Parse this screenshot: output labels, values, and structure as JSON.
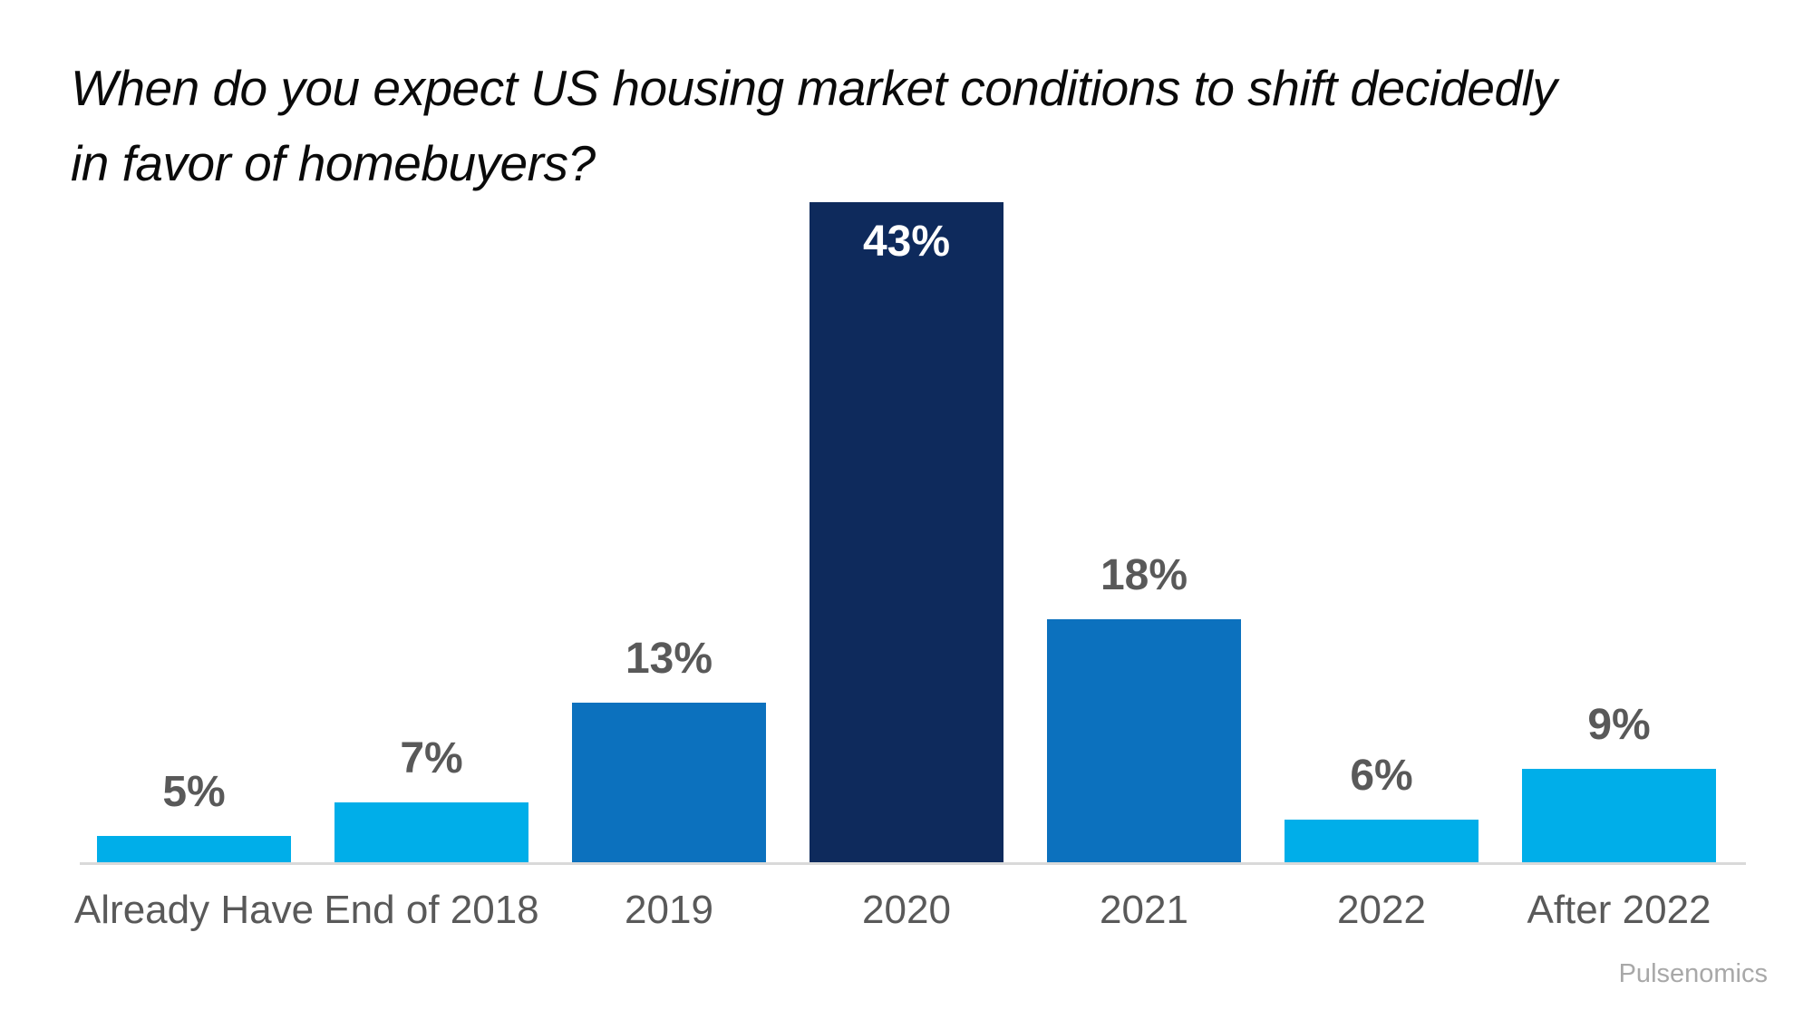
{
  "title": {
    "line1": "When do you expect US housing market conditions to shift decidedly",
    "line2": "in favor of homebuyers?"
  },
  "source": "Pulsenomics",
  "colors": {
    "light_blue": "#00AEE9",
    "medium_blue": "#0C71BE",
    "dark_navy": "#0E2A5C",
    "label_gray": "#595959",
    "axis_gray": "#D9D9D9",
    "source_gray": "#A8A8A8",
    "title_black": "#0A0A0A",
    "value_on_dark": "#FFFFFF"
  },
  "chart_data": {
    "type": "bar",
    "title": "When do you expect US housing market conditions to shift decidedly in favor of homebuyers?",
    "categories": [
      "Already Have",
      "End of 2018",
      "2019",
      "2020",
      "2021",
      "2022",
      "After 2022"
    ],
    "values": [
      5,
      7,
      13,
      43,
      18,
      6,
      9
    ],
    "value_labels": [
      "5%",
      "7%",
      "13%",
      "43%",
      "18%",
      "6%",
      "9%"
    ],
    "bar_color_roles": [
      "light_blue",
      "light_blue",
      "medium_blue",
      "dark_navy",
      "medium_blue",
      "light_blue",
      "light_blue"
    ],
    "xlabel": "",
    "ylabel": "",
    "ylim": [
      0,
      45
    ],
    "grid": false,
    "legend": false,
    "axes_visible": "x-baseline only",
    "data_labels": "above bars; 43% label white inside bar",
    "source": "Pulsenomics"
  }
}
